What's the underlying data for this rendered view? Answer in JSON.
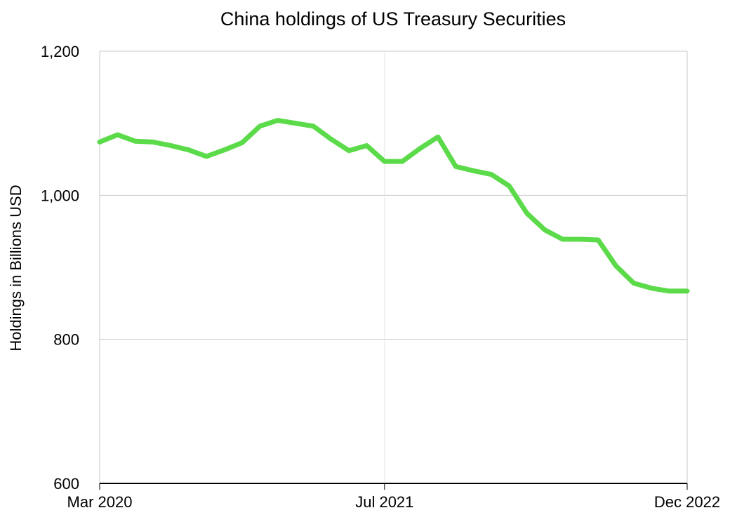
{
  "chart_data": {
    "type": "line",
    "title": "China holdings of US Treasury Securities",
    "xlabel": "",
    "ylabel": "Holdings in Billions USD",
    "ylim": [
      600,
      1200
    ],
    "y_ticks": [
      600,
      800,
      1000,
      1200
    ],
    "y_tick_labels": [
      "600",
      "800",
      "1,000",
      "1,200"
    ],
    "x_ticks": [
      "2020-03",
      "2021-07",
      "2022-12"
    ],
    "x_tick_labels": [
      "Mar 2020",
      "Jul 2021",
      "Dec 2022"
    ],
    "grid": true,
    "colors": {
      "line": "#5cdb4a",
      "grid": "#c8c8c8",
      "vgrid": "#e6e6e6",
      "axis": "#000000"
    },
    "series": [
      {
        "x": [
          "2020-03",
          "2020-04",
          "2020-05",
          "2020-06",
          "2020-07",
          "2020-08",
          "2020-09",
          "2020-10",
          "2020-11",
          "2020-12",
          "2021-01",
          "2021-02",
          "2021-03",
          "2021-04",
          "2021-05",
          "2021-06",
          "2021-07",
          "2021-08",
          "2021-09",
          "2021-10",
          "2021-11",
          "2021-12",
          "2022-01",
          "2022-02",
          "2022-03",
          "2022-04",
          "2022-05",
          "2022-06",
          "2022-07",
          "2022-08",
          "2022-09",
          "2022-10",
          "2022-11",
          "2022-12"
        ],
        "values": [
          1074,
          1084,
          1075,
          1074,
          1069,
          1063,
          1054,
          1063,
          1073,
          1096,
          1104,
          1100,
          1096,
          1078,
          1062,
          1069,
          1047,
          1047,
          1065,
          1081,
          1040,
          1034,
          1029,
          1013,
          975,
          952,
          939,
          939,
          938,
          902,
          878,
          871,
          867,
          867
        ]
      }
    ]
  }
}
